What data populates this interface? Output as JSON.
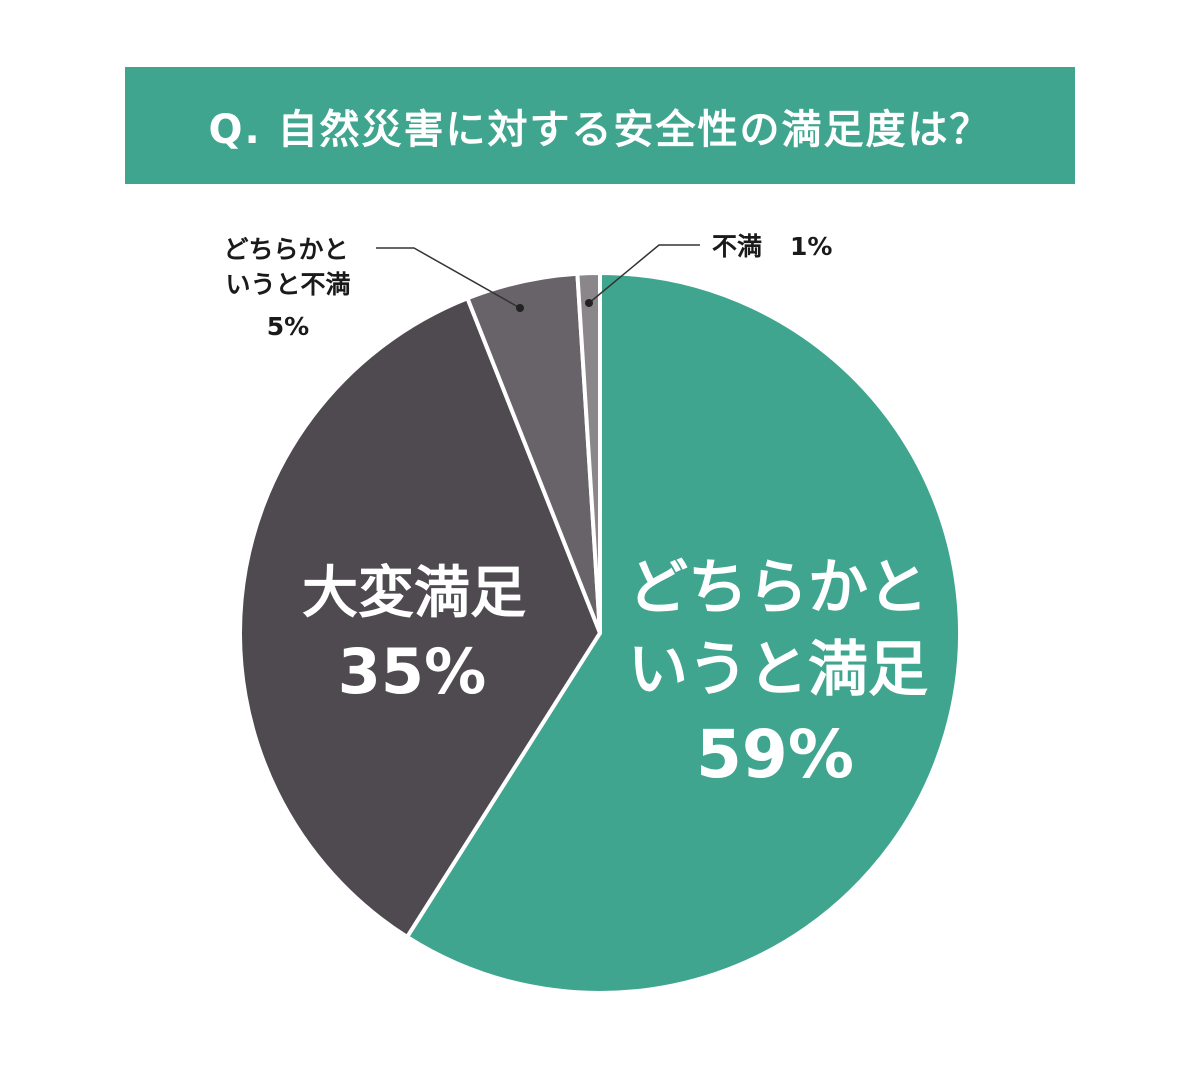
{
  "chart_data": {
    "type": "pie",
    "title": "Q. 自然災害に対する安全性の満足度は？",
    "slices": [
      {
        "label_lines": [
          "どちらかと",
          "いうと満足"
        ],
        "value": 59,
        "value_label": "59%",
        "color": "#3fa58f"
      },
      {
        "label_lines": [
          "大変満足"
        ],
        "value": 35,
        "value_label": "35%",
        "color": "#4e4a4f"
      },
      {
        "label_lines": [
          "どちらかと",
          "いうと不満"
        ],
        "value": 5,
        "value_label": "5%",
        "color": "#686368"
      },
      {
        "label_lines": [
          "不満"
        ],
        "value": 1,
        "value_label": "1%",
        "color": "#8a868a"
      }
    ],
    "start_angle_deg": 0,
    "direction": "clockwise"
  }
}
